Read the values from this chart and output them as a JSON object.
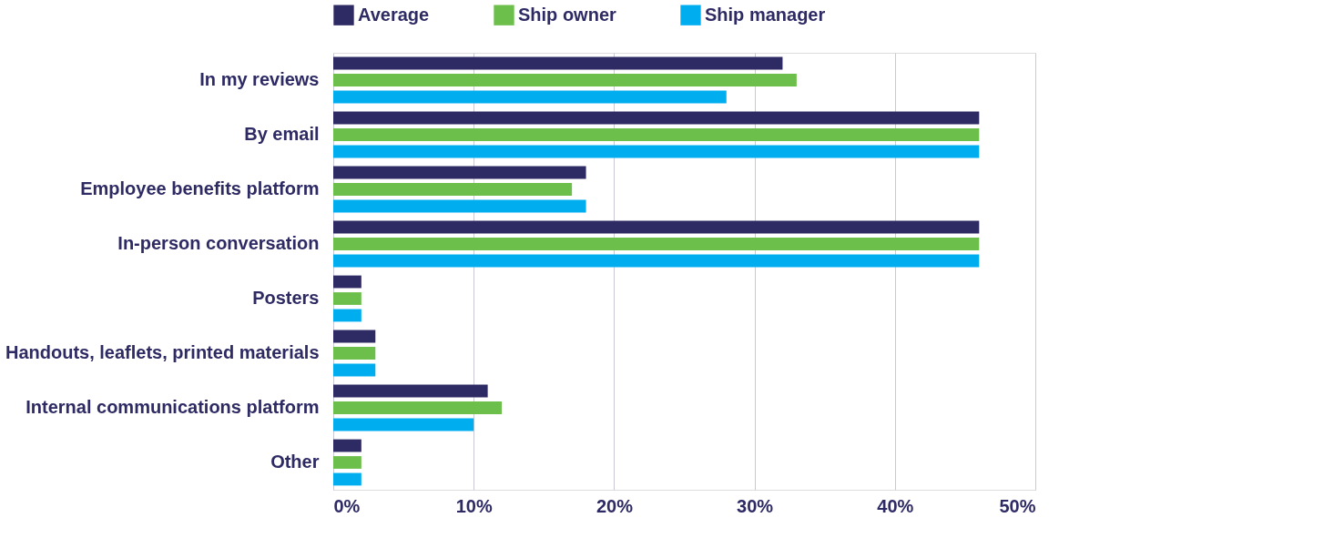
{
  "chart_data": {
    "type": "bar",
    "orientation": "horizontal",
    "categories": [
      "In my reviews",
      "By email",
      "Employee benefits platform",
      "In-person conversation",
      "Posters",
      "Handouts, leaflets, printed materials",
      "Internal communications platform",
      "Other"
    ],
    "series": [
      {
        "name": "Average",
        "color": "#2e2a64",
        "values": [
          32,
          46,
          18,
          46,
          2,
          3,
          11,
          2
        ]
      },
      {
        "name": "Ship owner",
        "color": "#6dbf4b",
        "values": [
          33,
          46,
          17,
          46,
          2,
          3,
          12,
          2
        ]
      },
      {
        "name": "Ship manager",
        "color": "#00aeef",
        "values": [
          28,
          46,
          18,
          46,
          2,
          3,
          10,
          2
        ]
      }
    ],
    "xlim": [
      0,
      50
    ],
    "xticks": [
      {
        "value": 0,
        "label": "0%"
      },
      {
        "value": 10,
        "label": "10%"
      },
      {
        "value": 20,
        "label": "20%"
      },
      {
        "value": 30,
        "label": "30%"
      },
      {
        "value": 40,
        "label": "40%"
      },
      {
        "value": 50,
        "label": "50%"
      }
    ],
    "grid": "x",
    "legend": "top"
  }
}
